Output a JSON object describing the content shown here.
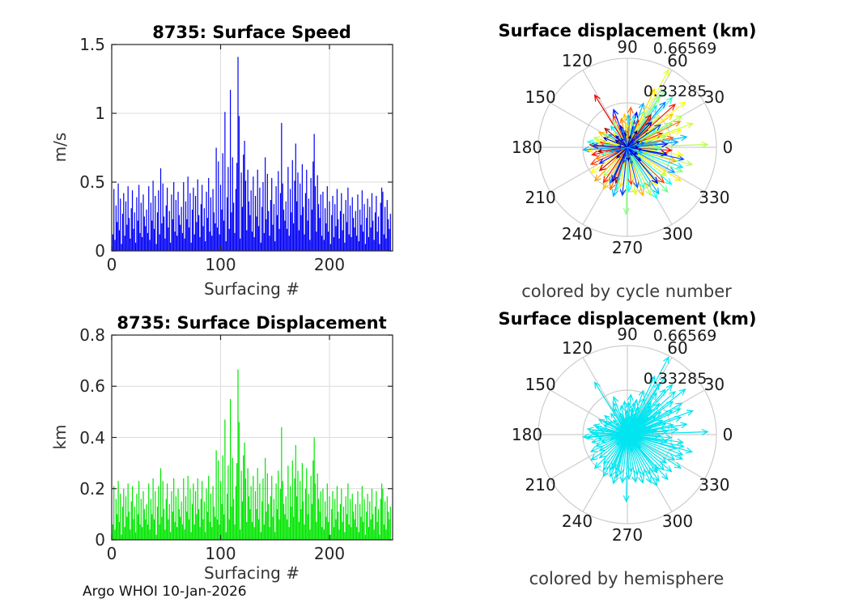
{
  "footer": "Argo WHOI 10-Jan-2026",
  "chart_data": [
    {
      "type": "bar",
      "title": "8735: Surface Speed",
      "xlabel": "Surfacing #",
      "ylabel": "m/s",
      "xlim": [
        0,
        258
      ],
      "ylim": [
        0,
        1.5
      ],
      "xticks": [
        0,
        100,
        200
      ],
      "yticks": [
        0,
        0.5,
        1,
        1.5
      ],
      "bar_color": "#0000f5",
      "grid": true,
      "values": [
        0.12,
        0.45,
        0.08,
        0.33,
        0.21,
        0.49,
        0.15,
        0.38,
        0.05,
        0.27,
        0.42,
        0.11,
        0.36,
        0.19,
        0.47,
        0.24,
        0.09,
        0.31,
        0.44,
        0.16,
        0.28,
        0.06,
        0.39,
        0.22,
        0.48,
        0.13,
        0.35,
        0.1,
        0.41,
        0.25,
        0.18,
        0.3,
        0.13,
        0.47,
        0.08,
        0.35,
        0.22,
        0.51,
        0.16,
        0.4,
        0.05,
        0.28,
        0.44,
        0.12,
        0.6,
        0.2,
        0.49,
        0.25,
        0.09,
        0.33,
        0.46,
        0.17,
        0.29,
        0.06,
        0.41,
        0.23,
        0.5,
        0.14,
        0.37,
        0.11,
        0.43,
        0.26,
        0.19,
        0.32,
        0.13,
        0.5,
        0.09,
        0.36,
        0.23,
        0.54,
        0.17,
        0.42,
        0.06,
        0.3,
        0.46,
        0.12,
        0.4,
        0.21,
        0.52,
        0.26,
        0.1,
        0.34,
        0.48,
        0.18,
        0.31,
        0.07,
        0.43,
        0.24,
        0.53,
        0.14,
        0.39,
        0.11,
        0.45,
        0.28,
        0.2,
        0.75,
        0.17,
        0.65,
        0.12,
        0.48,
        0.3,
        0.71,
        0.22,
        1.01,
        0.07,
        0.39,
        0.61,
        0.16,
        1.17,
        0.28,
        0.68,
        0.35,
        0.13,
        0.45,
        0.64,
        1.41,
        0.98,
        0.09,
        0.57,
        0.32,
        0.7,
        0.8,
        0.51,
        0.15,
        0.59,
        0.36,
        0.26,
        0.44,
        0.14,
        0.54,
        0.1,
        0.4,
        0.25,
        0.59,
        0.18,
        0.46,
        0.06,
        0.32,
        0.5,
        0.13,
        0.68,
        0.23,
        0.56,
        0.29,
        0.11,
        0.37,
        0.53,
        0.19,
        0.34,
        0.07,
        0.47,
        0.26,
        0.58,
        0.16,
        0.42,
        0.93,
        0.49,
        0.3,
        0.22,
        0.36,
        0.16,
        0.61,
        0.11,
        0.45,
        0.28,
        0.66,
        0.2,
        0.51,
        0.78,
        0.36,
        0.57,
        0.15,
        0.49,
        0.26,
        0.63,
        0.32,
        0.12,
        0.42,
        0.59,
        0.22,
        0.38,
        0.08,
        0.53,
        0.3,
        0.65,
        0.85,
        0.47,
        0.14,
        0.55,
        0.34,
        0.24,
        0.41,
        0.11,
        0.43,
        0.08,
        0.31,
        0.2,
        0.47,
        0.14,
        0.36,
        0.05,
        0.26,
        0.4,
        0.1,
        0.34,
        0.18,
        0.45,
        0.23,
        0.09,
        0.29,
        0.42,
        0.15,
        0.27,
        0.06,
        0.37,
        0.21,
        0.46,
        0.12,
        0.33,
        0.1,
        0.39,
        0.24,
        0.17,
        0.29,
        0.11,
        0.41,
        0.07,
        0.3,
        0.19,
        0.44,
        0.14,
        0.34,
        0.05,
        0.24,
        0.38,
        0.1,
        0.32,
        0.17,
        0.42,
        0.22,
        0.08,
        0.28,
        0.4,
        0.14,
        0.25,
        0.05,
        0.35,
        0.46,
        0.43,
        0.12,
        0.32,
        0.09,
        0.37,
        0.23,
        0.16,
        0.27
      ]
    },
    {
      "type": "bar",
      "title": "8735: Surface Displacement",
      "xlabel": "Surfacing #",
      "ylabel": "km",
      "xlim": [
        0,
        258
      ],
      "ylim": [
        0,
        0.8
      ],
      "xticks": [
        0,
        100,
        200
      ],
      "yticks": [
        0,
        0.2,
        0.4,
        0.6,
        0.8
      ],
      "bar_color": "#00e600",
      "grid": true,
      "values": [
        0.06,
        0.21,
        0.04,
        0.16,
        0.1,
        0.23,
        0.07,
        0.18,
        0.02,
        0.13,
        0.2,
        0.05,
        0.17,
        0.09,
        0.22,
        0.11,
        0.04,
        0.15,
        0.21,
        0.08,
        0.13,
        0.03,
        0.18,
        0.1,
        0.23,
        0.06,
        0.16,
        0.05,
        0.19,
        0.12,
        0.08,
        0.14,
        0.06,
        0.22,
        0.04,
        0.16,
        0.1,
        0.24,
        0.08,
        0.19,
        0.02,
        0.13,
        0.21,
        0.06,
        0.28,
        0.09,
        0.23,
        0.12,
        0.04,
        0.16,
        0.22,
        0.08,
        0.14,
        0.03,
        0.19,
        0.11,
        0.24,
        0.07,
        0.17,
        0.05,
        0.2,
        0.12,
        0.09,
        0.15,
        0.06,
        0.24,
        0.04,
        0.17,
        0.11,
        0.25,
        0.08,
        0.2,
        0.03,
        0.14,
        0.22,
        0.06,
        0.19,
        0.1,
        0.24,
        0.12,
        0.05,
        0.16,
        0.23,
        0.08,
        0.15,
        0.03,
        0.2,
        0.11,
        0.25,
        0.07,
        0.18,
        0.05,
        0.21,
        0.13,
        0.09,
        0.35,
        0.08,
        0.31,
        0.06,
        0.23,
        0.14,
        0.33,
        0.1,
        0.47,
        0.03,
        0.18,
        0.29,
        0.08,
        0.55,
        0.13,
        0.32,
        0.16,
        0.06,
        0.21,
        0.3,
        0.666,
        0.46,
        0.04,
        0.27,
        0.15,
        0.33,
        0.38,
        0.24,
        0.07,
        0.28,
        0.17,
        0.12,
        0.21,
        0.07,
        0.25,
        0.05,
        0.19,
        0.12,
        0.28,
        0.08,
        0.22,
        0.03,
        0.15,
        0.24,
        0.06,
        0.32,
        0.11,
        0.26,
        0.14,
        0.05,
        0.17,
        0.25,
        0.09,
        0.16,
        0.03,
        0.22,
        0.12,
        0.27,
        0.08,
        0.2,
        0.44,
        0.23,
        0.14,
        0.1,
        0.17,
        0.08,
        0.29,
        0.05,
        0.21,
        0.13,
        0.31,
        0.09,
        0.24,
        0.37,
        0.17,
        0.27,
        0.07,
        0.23,
        0.12,
        0.3,
        0.15,
        0.06,
        0.2,
        0.28,
        0.1,
        0.18,
        0.04,
        0.25,
        0.14,
        0.31,
        0.4,
        0.22,
        0.07,
        0.26,
        0.16,
        0.11,
        0.19,
        0.05,
        0.2,
        0.04,
        0.15,
        0.09,
        0.22,
        0.07,
        0.17,
        0.02,
        0.12,
        0.19,
        0.05,
        0.16,
        0.08,
        0.21,
        0.11,
        0.04,
        0.14,
        0.2,
        0.07,
        0.13,
        0.03,
        0.17,
        0.1,
        0.22,
        0.06,
        0.16,
        0.05,
        0.18,
        0.11,
        0.08,
        0.14,
        0.05,
        0.19,
        0.03,
        0.14,
        0.09,
        0.21,
        0.07,
        0.16,
        0.02,
        0.11,
        0.18,
        0.05,
        0.15,
        0.08,
        0.2,
        0.1,
        0.04,
        0.13,
        0.19,
        0.07,
        0.12,
        0.02,
        0.16,
        0.22,
        0.2,
        0.06,
        0.15,
        0.04,
        0.17,
        0.11,
        0.08,
        0.13
      ]
    },
    {
      "type": "polar_quiver",
      "title": "Surface displacement (km)",
      "caption": "colored by cycle number",
      "color_mode": "jet",
      "angle_ticks": [
        0,
        30,
        60,
        90,
        120,
        150,
        180,
        210,
        240,
        270,
        300,
        330
      ],
      "r_tick_labels": [
        "0.33285",
        "0.66569"
      ],
      "rmax": 0.66569
    },
    {
      "type": "polar_quiver",
      "title": "Surface displacement (km)",
      "caption": "colored by hemisphere",
      "color_mode": "solid",
      "arrow_color": "#00e5f0",
      "angle_ticks": [
        0,
        30,
        60,
        90,
        120,
        150,
        180,
        210,
        240,
        270,
        300,
        330
      ],
      "r_tick_labels": [
        "0.33285",
        "0.66569"
      ],
      "rmax": 0.66569
    }
  ],
  "polar_arrows": [
    [
      2,
      0.6,
      0.55
    ],
    [
      5,
      0.3,
      0.1
    ],
    [
      8,
      0.22,
      0.72
    ],
    [
      12,
      0.35,
      0.78
    ],
    [
      15,
      0.18,
      0.3
    ],
    [
      18,
      0.42,
      0.62
    ],
    [
      22,
      0.28,
      0.85
    ],
    [
      25,
      0.15,
      0.22
    ],
    [
      28,
      0.38,
      0.48
    ],
    [
      30,
      0.47,
      0.55
    ],
    [
      33,
      0.25,
      0.4
    ],
    [
      36,
      0.42,
      0.68
    ],
    [
      40,
      0.2,
      0.15
    ],
    [
      44,
      0.33,
      0.58
    ],
    [
      48,
      0.5,
      0.42
    ],
    [
      52,
      0.27,
      0.8
    ],
    [
      55,
      0.38,
      0.35
    ],
    [
      58,
      0.45,
      0.52
    ],
    [
      62,
      0.655,
      0.6
    ],
    [
      65,
      0.3,
      0.45
    ],
    [
      68,
      0.22,
      0.88
    ],
    [
      72,
      0.16,
      0.25
    ],
    [
      75,
      0.27,
      0.12
    ],
    [
      80,
      0.2,
      0.65
    ],
    [
      84,
      0.14,
      0.5
    ],
    [
      88,
      0.24,
      0.32
    ],
    [
      92,
      0.18,
      0.58
    ],
    [
      96,
      0.13,
      0.2
    ],
    [
      102,
      0.22,
      0.75
    ],
    [
      108,
      0.17,
      0.05
    ],
    [
      114,
      0.26,
      0.82
    ],
    [
      122,
      0.46,
      0.9
    ],
    [
      128,
      0.2,
      0.35
    ],
    [
      134,
      0.15,
      0.6
    ],
    [
      140,
      0.22,
      0.95
    ],
    [
      146,
      0.17,
      0.28
    ],
    [
      152,
      0.24,
      0.7
    ],
    [
      158,
      0.19,
      0.08
    ],
    [
      164,
      0.26,
      0.55
    ],
    [
      170,
      0.21,
      0.85
    ],
    [
      176,
      0.28,
      0.92
    ],
    [
      180,
      0.24,
      0.78
    ],
    [
      184,
      0.3,
      0.65
    ],
    [
      188,
      0.22,
      0.97
    ],
    [
      192,
      0.27,
      0.88
    ],
    [
      196,
      0.2,
      0.45
    ],
    [
      200,
      0.25,
      0.75
    ],
    [
      205,
      0.3,
      0.82
    ],
    [
      210,
      0.24,
      0.15
    ],
    [
      215,
      0.33,
      0.62
    ],
    [
      220,
      0.27,
      0.92
    ],
    [
      226,
      0.35,
      0.72
    ],
    [
      231,
      0.28,
      0.55
    ],
    [
      236,
      0.32,
      0.85
    ],
    [
      240,
      0.36,
      0.68
    ],
    [
      244,
      0.3,
      0.25
    ],
    [
      248,
      0.34,
      0.78
    ],
    [
      252,
      0.28,
      0.95
    ],
    [
      256,
      0.33,
      0.45
    ],
    [
      260,
      0.3,
      0.65
    ],
    [
      264,
      0.36,
      0.18
    ],
    [
      269,
      0.5,
      0.5
    ],
    [
      272,
      0.33,
      0.38
    ],
    [
      276,
      0.28,
      0.82
    ],
    [
      280,
      0.36,
      0.6
    ],
    [
      284,
      0.31,
      0.22
    ],
    [
      288,
      0.38,
      0.7
    ],
    [
      292,
      0.33,
      0.42
    ],
    [
      296,
      0.4,
      0.55
    ],
    [
      300,
      0.34,
      0.75
    ],
    [
      304,
      0.42,
      0.3
    ],
    [
      308,
      0.36,
      0.62
    ],
    [
      312,
      0.45,
      0.48
    ],
    [
      316,
      0.38,
      0.8
    ],
    [
      320,
      0.43,
      0.38
    ],
    [
      324,
      0.36,
      0.58
    ],
    [
      328,
      0.47,
      0.65
    ],
    [
      332,
      0.4,
      0.28
    ],
    [
      336,
      0.45,
      0.5
    ],
    [
      340,
      0.44,
      0.35
    ],
    [
      344,
      0.38,
      0.72
    ],
    [
      348,
      0.43,
      0.2
    ],
    [
      352,
      0.42,
      0.62
    ],
    [
      356,
      0.33,
      0.88
    ],
    [
      10,
      0.45,
      0.32
    ],
    [
      20,
      0.52,
      0.58
    ],
    [
      38,
      0.55,
      0.62
    ],
    [
      50,
      0.44,
      0.25
    ],
    [
      57,
      0.52,
      0.48
    ],
    [
      65,
      0.48,
      0.66
    ],
    [
      110,
      0.3,
      0.15
    ],
    [
      118,
      0.22,
      0.52
    ],
    [
      300,
      0.44,
      0.4
    ],
    [
      310,
      0.35,
      0.12
    ],
    [
      254,
      0.38,
      0.3
    ],
    [
      246,
      0.28,
      0.08
    ],
    [
      183,
      0.33,
      0.3
    ],
    [
      177,
      0.26,
      0.18
    ],
    [
      172,
      0.3,
      0.4
    ],
    [
      167,
      0.24,
      0.62
    ],
    [
      150,
      0.2,
      0.5
    ],
    [
      95,
      0.25,
      0.68
    ],
    [
      85,
      0.3,
      0.78
    ],
    [
      78,
      0.24,
      0.42
    ],
    [
      70,
      0.35,
      0.3
    ],
    [
      54,
      0.3,
      0.9
    ],
    [
      46,
      0.26,
      0.05
    ],
    [
      42,
      0.48,
      0.85
    ],
    [
      34,
      0.3,
      0.2
    ],
    [
      26,
      0.44,
      0.75
    ],
    [
      16,
      0.3,
      0.52
    ],
    [
      6,
      0.38,
      0.28
    ],
    [
      358,
      0.25,
      0.45
    ],
    [
      350,
      0.3,
      0.08
    ],
    [
      345,
      0.5,
      0.55
    ],
    [
      0,
      0.08,
      0.02
    ],
    [
      25,
      0.1,
      0.05
    ],
    [
      50,
      0.07,
      0.12
    ],
    [
      75,
      0.09,
      0.03
    ],
    [
      100,
      0.11,
      0.08
    ],
    [
      125,
      0.08,
      0.15
    ],
    [
      150,
      0.1,
      0.02
    ],
    [
      175,
      0.07,
      0.1
    ],
    [
      200,
      0.09,
      0.18
    ],
    [
      225,
      0.11,
      0.06
    ],
    [
      250,
      0.08,
      0.12
    ],
    [
      275,
      0.1,
      0.04
    ],
    [
      300,
      0.07,
      0.16
    ],
    [
      325,
      0.09,
      0.09
    ],
    [
      350,
      0.11,
      0.14
    ],
    [
      15,
      0.13,
      0.22
    ],
    [
      45,
      0.12,
      0.18
    ],
    [
      105,
      0.14,
      0.25
    ],
    [
      135,
      0.12,
      0.07
    ],
    [
      195,
      0.13,
      0.28
    ],
    [
      255,
      0.12,
      0.2
    ],
    [
      315,
      0.14,
      0.1
    ],
    [
      285,
      0.13,
      0.24
    ],
    [
      60,
      0.14,
      0.02
    ],
    [
      340,
      0.12,
      0.3
    ]
  ],
  "colors": {
    "axis": "#262626",
    "cartesian_grid": "#dcdcdc",
    "polar_grid": "#cdcdcd",
    "background": "#ffffff"
  }
}
